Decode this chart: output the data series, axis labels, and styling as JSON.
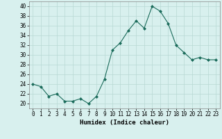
{
  "x": [
    0,
    1,
    2,
    3,
    4,
    5,
    6,
    7,
    8,
    9,
    10,
    11,
    12,
    13,
    14,
    15,
    16,
    17,
    18,
    19,
    20,
    21,
    22,
    23
  ],
  "y": [
    24.0,
    23.5,
    21.5,
    22.0,
    20.5,
    20.5,
    21.0,
    20.0,
    21.5,
    25.0,
    31.0,
    32.5,
    35.0,
    37.0,
    35.5,
    40.0,
    39.0,
    36.5,
    32.0,
    30.5,
    29.0,
    29.5,
    29.0,
    29.0
  ],
  "xlabel": "Humidex (Indice chaleur)",
  "xlim": [
    -0.5,
    23.5
  ],
  "ylim": [
    19,
    41
  ],
  "yticks": [
    20,
    22,
    24,
    26,
    28,
    30,
    32,
    34,
    36,
    38,
    40
  ],
  "xticks": [
    0,
    1,
    2,
    3,
    4,
    5,
    6,
    7,
    8,
    9,
    10,
    11,
    12,
    13,
    14,
    15,
    16,
    17,
    18,
    19,
    20,
    21,
    22,
    23
  ],
  "line_color": "#1a6b5a",
  "marker": "D",
  "marker_size": 2.0,
  "bg_color": "#d8f0ee",
  "grid_color": "#b8d8d4",
  "label_fontsize": 6.5,
  "tick_fontsize": 5.5
}
